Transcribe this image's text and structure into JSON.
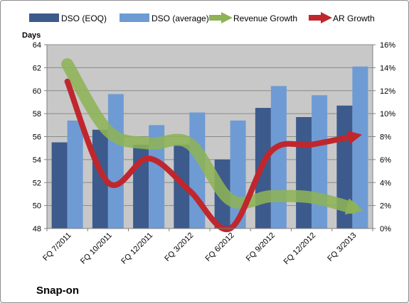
{
  "chart_data": {
    "type": "bar",
    "company": "Snap-on",
    "ylabel_left": "Days",
    "categories": [
      "FQ 7/2011",
      "FQ 10/2011",
      "FQ 12/2011",
      "FQ 3/2012",
      "FQ 6/2012",
      "FQ 9/2012",
      "FQ 12/2012",
      "FQ 3/2013"
    ],
    "left_axis": {
      "min": 48,
      "max": 64,
      "step": 2,
      "ticks": [
        "48",
        "50",
        "52",
        "54",
        "56",
        "58",
        "60",
        "62",
        "64"
      ]
    },
    "right_axis": {
      "min": 0,
      "max": 16,
      "step": 2,
      "ticks": [
        "0%",
        "2%",
        "4%",
        "6%",
        "8%",
        "10%",
        "12%",
        "14%",
        "16%"
      ]
    },
    "bar_series": [
      {
        "name": "DSO (EOQ)",
        "color": "#3c5a8c",
        "values": [
          55.5,
          56.6,
          55.3,
          55.3,
          54.0,
          58.5,
          57.7,
          58.7
        ]
      },
      {
        "name": "DSO (average)",
        "color": "#6e9bd4",
        "values": [
          57.4,
          59.7,
          57.0,
          58.1,
          57.4,
          60.4,
          59.6,
          62.1
        ]
      }
    ],
    "line_series": [
      {
        "name": "Revenue Growth",
        "color": "#8db356",
        "unit": "%",
        "values": [
          14.3,
          8.5,
          7.4,
          7.4,
          2.5,
          2.8,
          2.7,
          1.8
        ]
      },
      {
        "name": "AR Growth",
        "color": "#c0272d",
        "unit": "%",
        "values": [
          12.8,
          4.0,
          6.1,
          3.3,
          0.0,
          6.7,
          7.3,
          8.0
        ]
      }
    ],
    "plot_area_color": "#c8c8c8",
    "grid": true,
    "legend_position": "top"
  }
}
